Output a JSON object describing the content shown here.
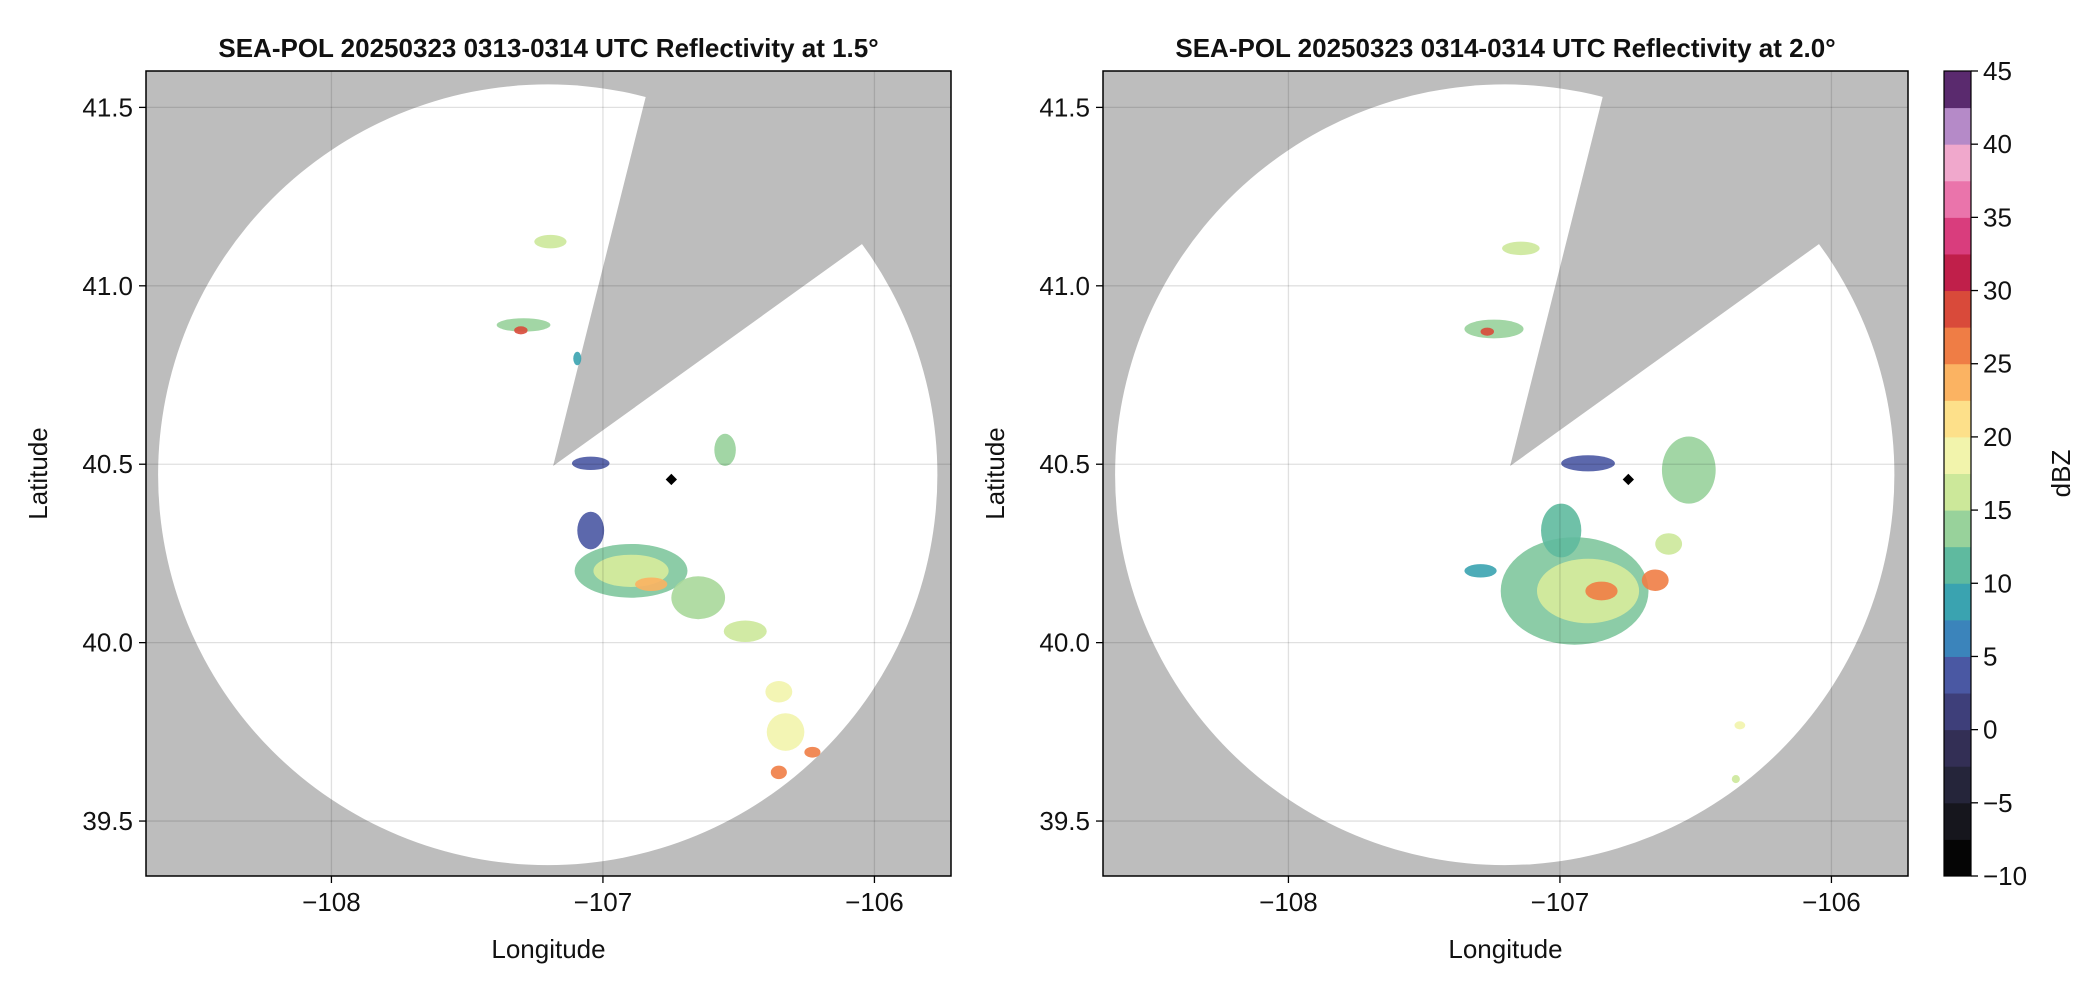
{
  "chart_data": [
    {
      "type": "ppi",
      "title": "SEA-POL 20250323 0313-0314 UTC Reflectivity at 1.5°",
      "xlabel": "Longitude",
      "ylabel": "Latitude",
      "xlim": [
        -108.683,
        -105.718
      ],
      "ylim": [
        39.346,
        41.602
      ],
      "xticks": [
        {
          "value": -108,
          "label": "−108"
        },
        {
          "value": -107,
          "label": "−107"
        },
        {
          "value": -106,
          "label": "−106"
        }
      ],
      "yticks": [
        39.5,
        {
          "value": 40,
          "label": "40.0"
        },
        40.5,
        {
          "value": 41,
          "label": "41.0"
        },
        41.5
      ],
      "grid": true
    },
    {
      "type": "ppi",
      "title": "SEA-POL 20250323 0314-0314 UTC Reflectivity at 2.0°",
      "xlabel": "Longitude",
      "ylabel": "Latitude",
      "xlim": [
        -108.683,
        -105.718
      ],
      "ylim": [
        39.346,
        41.602
      ],
      "xticks": [
        {
          "value": -108,
          "label": "−108"
        },
        {
          "value": -107,
          "label": "−107"
        },
        {
          "value": -106,
          "label": "−106"
        }
      ],
      "yticks": [
        39.5,
        {
          "value": 40,
          "label": "40.0"
        },
        40.5,
        {
          "value": 41,
          "label": "41.0"
        },
        41.5
      ],
      "grid": true
    },
    {
      "type": "colorbar",
      "label": "dBZ",
      "ylim": [
        -10,
        45
      ],
      "yticks": [
        {
          "value": -10,
          "label": "−10"
        },
        {
          "value": -5,
          "label": "−5"
        },
        0,
        5,
        10,
        15,
        20,
        25,
        30,
        35,
        40,
        45
      ],
      "colors": [
        "#050505",
        "#16161d",
        "#25253a",
        "#332f55",
        "#3e3f7a",
        "#4a58a3",
        "#3b84bb",
        "#3aa3b0",
        "#5fba9f",
        "#98d29b",
        "#cce89a",
        "#f2f4ac",
        "#fde08a",
        "#fbb362",
        "#ef7d45",
        "#d94a3a",
        "#c01f4a",
        "#d93d7d",
        "#ea74ab",
        "#f0a8cc",
        "#b58ac8",
        "#5a2a6e"
      ]
    }
  ]
}
